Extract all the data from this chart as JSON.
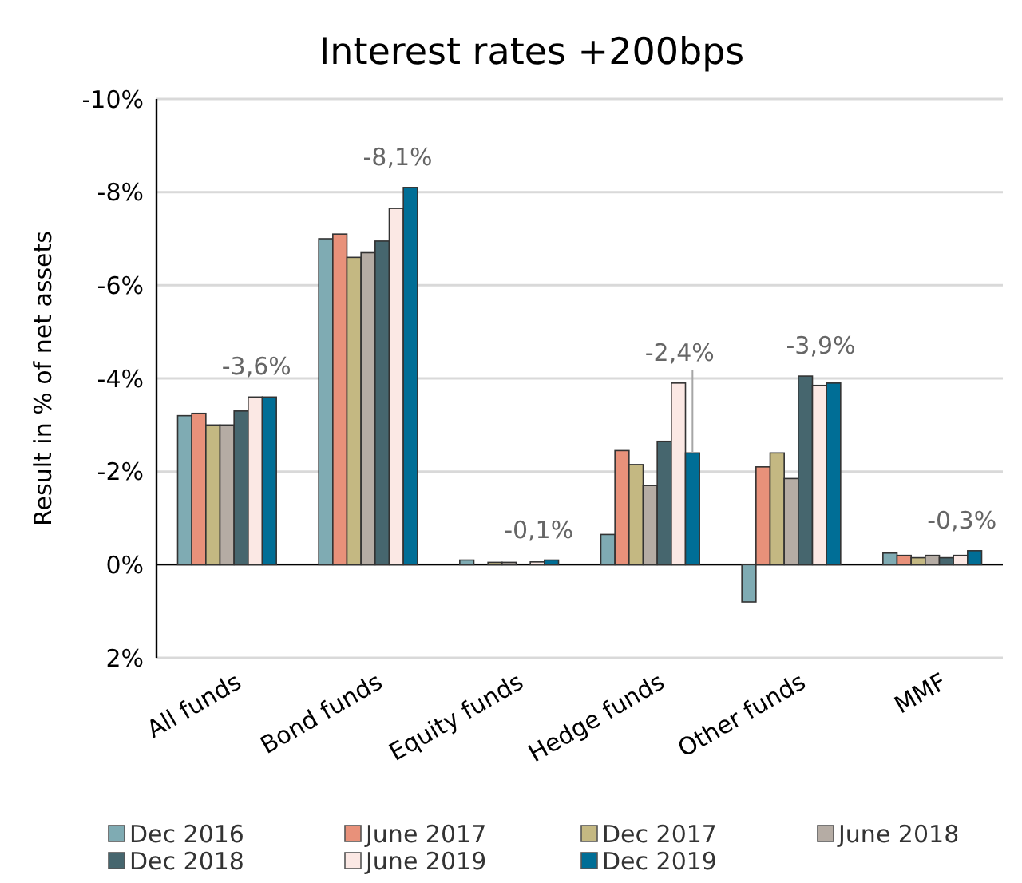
{
  "chart_data": {
    "type": "bar",
    "title": "Interest rates +200bps",
    "ylabel": "Result in % of net assets",
    "categories": [
      "All funds",
      "Bond funds",
      "Equity funds",
      "Hedge funds",
      "Other funds",
      "MMF"
    ],
    "series": [
      {
        "name": "Dec 2016",
        "color": "#7fabb3",
        "values": [
          -3.2,
          -7.0,
          -0.1,
          -0.65,
          0.8,
          -0.25
        ]
      },
      {
        "name": "June 2017",
        "color": "#e8917a",
        "values": [
          -3.25,
          -7.1,
          null,
          -2.45,
          -2.1,
          -0.2
        ]
      },
      {
        "name": "Dec 2017",
        "color": "#c4b882",
        "values": [
          -3.0,
          -6.6,
          -0.05,
          -2.15,
          -2.4,
          -0.15
        ]
      },
      {
        "name": "June 2018",
        "color": "#b5aca4",
        "values": [
          -3.0,
          -6.7,
          -0.05,
          -1.7,
          -1.85,
          -0.2
        ]
      },
      {
        "name": "Dec 2018",
        "color": "#46666e",
        "values": [
          -3.3,
          -6.95,
          null,
          -2.65,
          -4.05,
          -0.15
        ]
      },
      {
        "name": "June 2019",
        "color": "#fbe8e4",
        "values": [
          -3.6,
          -7.65,
          -0.06,
          -3.9,
          -3.85,
          -0.2
        ]
      },
      {
        "name": "Dec 2019",
        "color": "#006e96",
        "values": [
          -3.6,
          -8.1,
          -0.1,
          -2.4,
          -3.9,
          -0.3
        ],
        "value_labels": [
          "-3,6%",
          "-8,1%",
          "-0,1%",
          "-2,4%",
          "-3,9%",
          "-0,3%"
        ]
      }
    ],
    "ylim": [
      2,
      -10
    ],
    "yticks": [
      {
        "value": 2,
        "label": "2%"
      },
      {
        "value": 0,
        "label": "0%"
      },
      {
        "value": -2,
        "label": "-2%"
      },
      {
        "value": -4,
        "label": "-4%"
      },
      {
        "value": -6,
        "label": "-6%"
      },
      {
        "value": -8,
        "label": "-8%"
      },
      {
        "value": -10,
        "label": "-10%"
      }
    ],
    "grid": "y",
    "legend": "bottom"
  }
}
